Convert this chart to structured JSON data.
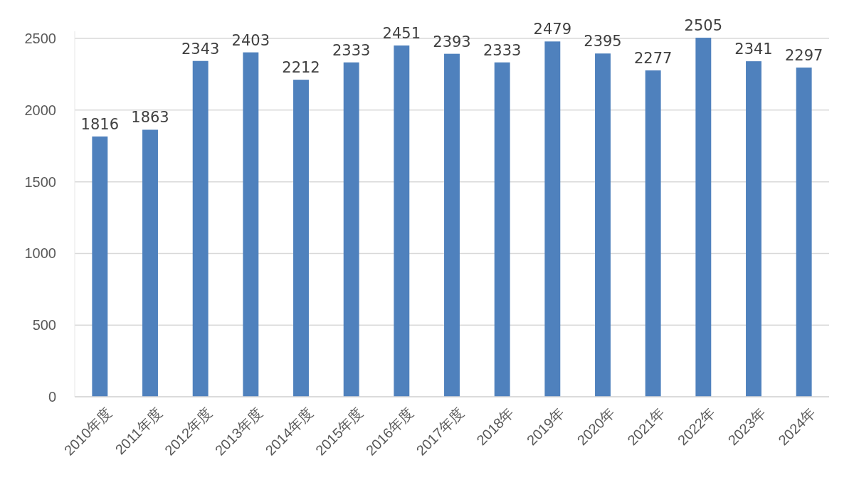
{
  "chart_data": {
    "type": "bar",
    "categories": [
      "2010年度",
      "2011年度",
      "2012年度",
      "2013年度",
      "2014年度",
      "2015年度",
      "2016年度",
      "2017年度",
      "2018年",
      "2019年",
      "2020年",
      "2021年",
      "2022年",
      "2023年",
      "2024年"
    ],
    "values": [
      1816,
      1863,
      2343,
      2403,
      2212,
      2333,
      2451,
      2393,
      2333,
      2479,
      2395,
      2277,
      2505,
      2341,
      2297
    ],
    "color": "#4f81bd",
    "ylim": [
      0,
      2550
    ],
    "yticks": [
      0,
      500,
      1000,
      1500,
      2000,
      2500
    ],
    "grid": "y",
    "data_labels": true
  }
}
